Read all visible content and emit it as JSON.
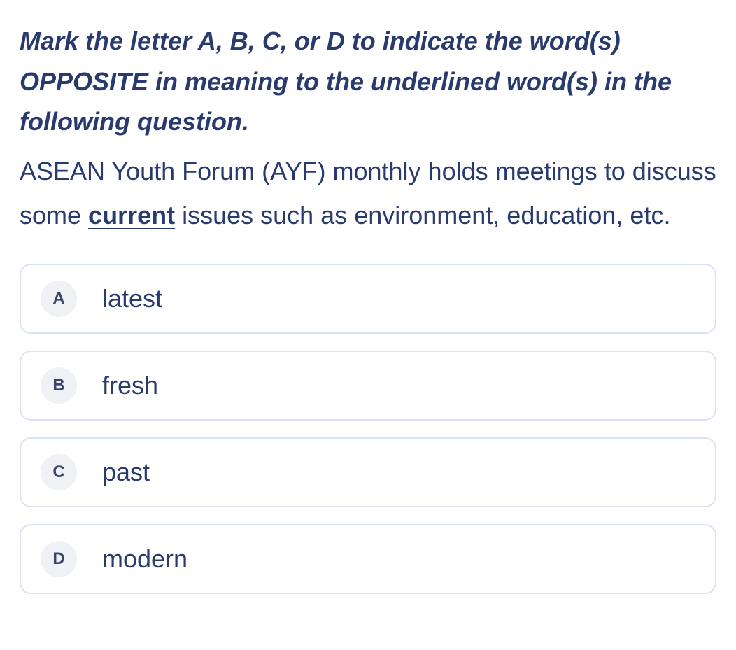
{
  "colors": {
    "text_primary": "#283a6e",
    "option_border": "#dbe2f5",
    "letter_bg": "#eff1f5",
    "letter_fg": "#3a456b",
    "background": "#ffffff"
  },
  "typography": {
    "instruction_fontsize": 36,
    "instruction_weight": "bold",
    "instruction_style": "italic",
    "question_fontsize": 36,
    "option_fontsize": 36,
    "letter_fontsize": 24
  },
  "question": {
    "instruction": "Mark the letter A, B, C, or D to indicate the word(s) OPPOSITE in meaning to the underlined word(s) in the following question.",
    "text_before": "ASEAN Youth Forum (AYF) monthly holds meetings to discuss some ",
    "underlined_word": "current",
    "text_after": " issues such as environment, education, etc."
  },
  "options": [
    {
      "letter": "A",
      "text": "latest"
    },
    {
      "letter": "B",
      "text": "fresh"
    },
    {
      "letter": "C",
      "text": "past"
    },
    {
      "letter": "D",
      "text": "modern"
    }
  ]
}
